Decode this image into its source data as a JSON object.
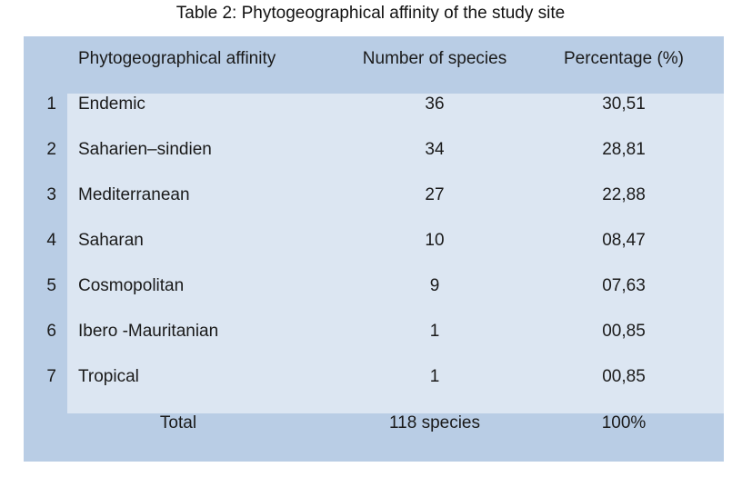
{
  "caption": "Table 2: Phytogeographical affinity of the study site",
  "table": {
    "headers": {
      "affinity": "Phytogeographical affinity",
      "count": "Number of species",
      "percentage": "Percentage (%)"
    },
    "rows": [
      {
        "num": "1",
        "affinity": "Endemic",
        "count": "36",
        "percentage": "30,51"
      },
      {
        "num": "2",
        "affinity": "Saharien–sindien",
        "count": "34",
        "percentage": "28,81"
      },
      {
        "num": "3",
        "affinity": "Mediterranean",
        "count": "27",
        "percentage": "22,88"
      },
      {
        "num": "4",
        "affinity": "Saharan",
        "count": "10",
        "percentage": "08,47"
      },
      {
        "num": "5",
        "affinity": "Cosmopolitan",
        "count": "9",
        "percentage": "07,63"
      },
      {
        "num": "6",
        "affinity": "Ibero -Mauritanian",
        "count": "1",
        "percentage": "00,85"
      },
      {
        "num": "7",
        "affinity": "Tropical",
        "count": "1",
        "percentage": "00,85"
      }
    ],
    "total": {
      "label": "Total",
      "count": "118 species",
      "percentage": "100%"
    }
  },
  "colors": {
    "outer_band": "#b9cde5",
    "inner_panel": "#dce6f2"
  }
}
